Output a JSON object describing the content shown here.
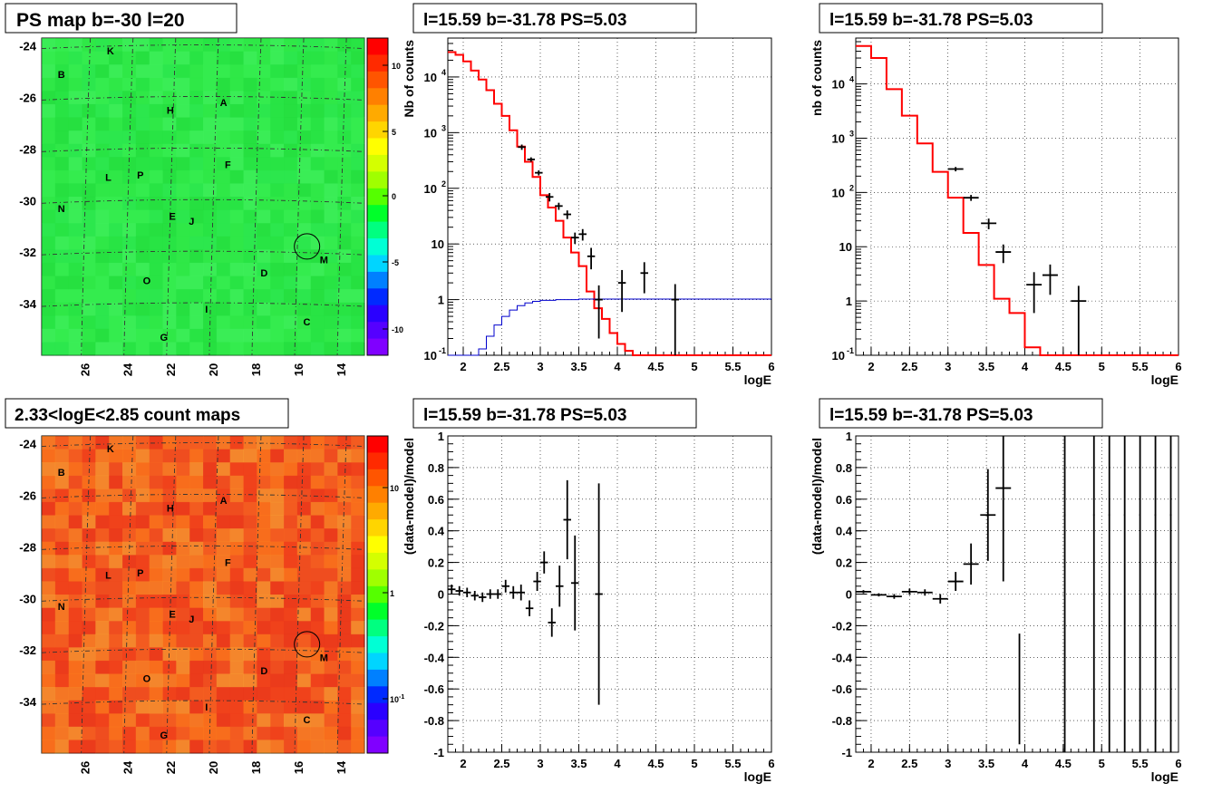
{
  "panels": {
    "map1_title": "PS map b=-30 l=20",
    "map2_title": "2.33<logE<2.85 count maps",
    "spec1_title": "l=15.59 b=-31.78 PS=5.03",
    "spec2_title": "l=15.59 b=-31.78 PS=5.03",
    "res1_title": "l=15.59 b=-31.78 PS=5.03",
    "res2_title": "l=15.59 b=-31.78 PS=5.03"
  },
  "maps": {
    "y_ticks": [
      "-24",
      "-26",
      "-28",
      "-30",
      "-32",
      "-34"
    ],
    "x_ticks": [
      "26",
      "24",
      "22",
      "20",
      "18",
      "16",
      "14"
    ],
    "source_labels": [
      {
        "label": "K",
        "l": 24.8,
        "b": -24.2
      },
      {
        "label": "B",
        "l": 27.1,
        "b": -25.1
      },
      {
        "label": "H",
        "l": 22.0,
        "b": -26.5
      },
      {
        "label": "A",
        "l": 19.5,
        "b": -26.2
      },
      {
        "label": "F",
        "l": 19.3,
        "b": -28.6
      },
      {
        "label": "L",
        "l": 24.9,
        "b": -29.1
      },
      {
        "label": "P",
        "l": 23.4,
        "b": -29.0
      },
      {
        "label": "N",
        "l": 27.1,
        "b": -30.3
      },
      {
        "label": "E",
        "l": 21.9,
        "b": -30.6
      },
      {
        "label": "J",
        "l": 21.0,
        "b": -30.8
      },
      {
        "label": "M",
        "l": 14.8,
        "b": -32.3
      },
      {
        "label": "D",
        "l": 17.6,
        "b": -32.8
      },
      {
        "label": "O",
        "l": 23.1,
        "b": -33.1
      },
      {
        "label": "I",
        "l": 20.3,
        "b": -34.2
      },
      {
        "label": "C",
        "l": 15.6,
        "b": -34.7
      },
      {
        "label": "G",
        "l": 22.3,
        "b": -35.3
      }
    ],
    "circle": {
      "l": 15.59,
      "b": -31.78
    },
    "colorbar1_ticks": [
      "10",
      "5",
      "0",
      "-5",
      "-10"
    ],
    "colorbar2_ticks": [
      "10",
      "1",
      "10-1"
    ]
  },
  "colors": {
    "model": "#ff0000",
    "background": "#0000cc",
    "data": "#000000"
  },
  "chart_data": [
    {
      "type": "line",
      "title": "l=15.59 b=-31.78 PS=5.03",
      "xlabel": "logE",
      "ylabel": "Nb of counts",
      "xlim": [
        1.8,
        6
      ],
      "ylim": [
        0.1,
        50000
      ],
      "yscale": "log",
      "x_ticks": [
        "2",
        "2.5",
        "3",
        "3.5",
        "4",
        "4.5",
        "5",
        "5.5",
        "6"
      ],
      "y_ticks": [
        "10^-1",
        "1",
        "10",
        "10^2",
        "10^3",
        "10^4"
      ],
      "series": [
        {
          "kind": "step",
          "color": "#ff0000",
          "edges": [
            1.8,
            1.9,
            2.0,
            2.1,
            2.2,
            2.3,
            2.4,
            2.5,
            2.6,
            2.7,
            2.8,
            2.9,
            3.0,
            3.1,
            3.2,
            3.3,
            3.4,
            3.5,
            3.6,
            3.7,
            3.8,
            3.9,
            4.0,
            4.1,
            4.2,
            6.0
          ],
          "values": [
            28000,
            25000,
            19000,
            13000,
            9000,
            5800,
            3300,
            2000,
            1100,
            560,
            300,
            160,
            75,
            45,
            26,
            13,
            7,
            4,
            1.4,
            0.7,
            0.45,
            0.25,
            0.16,
            0.12,
            0.08
          ]
        },
        {
          "kind": "step",
          "color": "#0000cc",
          "edges": [
            1.8,
            2.1,
            2.2,
            2.3,
            2.4,
            2.5,
            2.6,
            2.7,
            2.8,
            2.9,
            3.0,
            3.2,
            3.5,
            6.0
          ],
          "values": [
            0.05,
            0.08,
            0.13,
            0.22,
            0.35,
            0.5,
            0.65,
            0.78,
            0.87,
            0.93,
            0.97,
            1.0,
            1.02
          ]
        },
        {
          "kind": "points",
          "color": "#000000",
          "points": [
            [
              2.76,
              550,
              0.05,
              60
            ],
            [
              2.88,
              330,
              0.05,
              30
            ],
            [
              2.98,
              190,
              0.05,
              20
            ],
            [
              3.12,
              70,
              0.05,
              12
            ],
            [
              3.24,
              48,
              0.05,
              7
            ],
            [
              3.35,
              34,
              0.05,
              6
            ],
            [
              3.45,
              13,
              0.05,
              3
            ],
            [
              3.55,
              15,
              0.05,
              3.5
            ],
            [
              3.66,
              6,
              0.05,
              2.5
            ],
            [
              3.76,
              1,
              0.05,
              0.8
            ],
            [
              4.06,
              2,
              0.05,
              1.4
            ],
            [
              4.35,
              3,
              0.05,
              1.7
            ],
            [
              4.75,
              1,
              0.05,
              0.9
            ]
          ]
        }
      ]
    },
    {
      "type": "line",
      "title": "l=15.59 b=-31.78 PS=5.03",
      "xlabel": "logE",
      "ylabel": "nb of counts",
      "xlim": [
        1.8,
        6
      ],
      "ylim": [
        0.1,
        70000
      ],
      "yscale": "log",
      "x_ticks": [
        "2",
        "2.5",
        "3",
        "3.5",
        "4",
        "4.5",
        "5",
        "5.5",
        "6"
      ],
      "y_ticks": [
        "10^-1",
        "1",
        "10",
        "10^2",
        "10^3",
        "10^4"
      ],
      "series": [
        {
          "kind": "step",
          "color": "#ff0000",
          "edges": [
            1.8,
            2.0,
            2.2,
            2.4,
            2.6,
            2.8,
            3.0,
            3.2,
            3.4,
            3.6,
            3.8,
            4.0,
            4.2,
            4.4,
            6.0
          ],
          "values": [
            50000,
            30000,
            8000,
            2600,
            800,
            240,
            80,
            18,
            4.6,
            1.1,
            0.6,
            0.14,
            0.09,
            0.08
          ]
        },
        {
          "kind": "points",
          "color": "#000000",
          "points": [
            [
              3.1,
              270,
              0.1,
              25
            ],
            [
              3.3,
              80,
              0.1,
              10
            ],
            [
              3.53,
              27,
              0.1,
              6
            ],
            [
              3.72,
              8,
              0.1,
              3
            ],
            [
              4.12,
              2,
              0.1,
              1.4
            ],
            [
              4.33,
              3,
              0.1,
              1.7
            ],
            [
              4.7,
              1,
              0.1,
              0.9
            ]
          ]
        }
      ]
    },
    {
      "type": "scatter",
      "title": "l=15.59 b=-31.78 PS=5.03",
      "xlabel": "logE",
      "ylabel": "(data-model)/model",
      "xlim": [
        1.8,
        6
      ],
      "ylim": [
        -1,
        1
      ],
      "x_ticks": [
        "2",
        "2.5",
        "3",
        "3.5",
        "4",
        "4.5",
        "5",
        "5.5",
        "6"
      ],
      "y_ticks": [
        "1",
        "0.8",
        "0.6",
        "0.4",
        "0.2",
        "0",
        "-0.2",
        "-0.4",
        "-0.6",
        "-0.8",
        "-1"
      ],
      "points": [
        [
          1.85,
          0.03,
          0.05,
          0.03
        ],
        [
          1.95,
          0.02,
          0.05,
          0.03
        ],
        [
          2.05,
          0.01,
          0.05,
          0.03
        ],
        [
          2.15,
          -0.01,
          0.05,
          0.03
        ],
        [
          2.25,
          -0.02,
          0.05,
          0.03
        ],
        [
          2.35,
          0,
          0.05,
          0.03
        ],
        [
          2.45,
          0,
          0.05,
          0.03
        ],
        [
          2.55,
          0.05,
          0.05,
          0.04
        ],
        [
          2.65,
          0.01,
          0.05,
          0.04
        ],
        [
          2.75,
          0.01,
          0.05,
          0.05
        ],
        [
          2.86,
          -0.09,
          0.05,
          0.05
        ],
        [
          2.96,
          0.08,
          0.05,
          0.06
        ],
        [
          3.05,
          0.2,
          0.05,
          0.07
        ],
        [
          3.15,
          -0.18,
          0.05,
          0.09
        ],
        [
          3.25,
          0.05,
          0.05,
          0.13
        ],
        [
          3.35,
          0.47,
          0.05,
          0.25
        ],
        [
          3.45,
          0.07,
          0.05,
          0.3
        ],
        [
          3.76,
          0,
          0.05,
          0.7
        ]
      ]
    },
    {
      "type": "scatter",
      "title": "l=15.59 b=-31.78 PS=5.03",
      "xlabel": "logE",
      "ylabel": "(data-model)/model",
      "xlim": [
        1.8,
        6
      ],
      "ylim": [
        -1,
        1
      ],
      "x_ticks": [
        "2",
        "2.5",
        "3",
        "3.5",
        "4",
        "4.5",
        "5",
        "5.5",
        "6"
      ],
      "y_ticks": [
        "1",
        "0.8",
        "0.6",
        "0.4",
        "0.2",
        "0",
        "-0.2",
        "-0.4",
        "-0.6",
        "-0.8",
        "-1"
      ],
      "points": [
        [
          1.9,
          0.015,
          0.1,
          0.01
        ],
        [
          2.1,
          -0.005,
          0.1,
          0.01
        ],
        [
          2.3,
          -0.015,
          0.1,
          0.015
        ],
        [
          2.5,
          0.015,
          0.1,
          0.02
        ],
        [
          2.7,
          0.01,
          0.1,
          0.02
        ],
        [
          2.9,
          -0.03,
          0.1,
          0.03
        ],
        [
          3.1,
          0.08,
          0.1,
          0.06
        ],
        [
          3.3,
          0.19,
          0.1,
          0.13
        ],
        [
          3.52,
          0.5,
          0.1,
          0.29
        ],
        [
          3.72,
          0.67,
          0.1,
          0.59
        ],
        [
          3.93,
          -0.6,
          0.01,
          0.35
        ],
        [
          4.52,
          0.5,
          0.01,
          1.5
        ],
        [
          4.9,
          0.5,
          0.01,
          1.5
        ],
        [
          5.1,
          0.5,
          0.01,
          1.5
        ],
        [
          5.3,
          0.5,
          0.01,
          1.5
        ],
        [
          5.5,
          0.5,
          0.01,
          1.5
        ],
        [
          5.7,
          0.5,
          0.01,
          1.5
        ],
        [
          5.9,
          0.5,
          0.01,
          1.5
        ]
      ]
    }
  ]
}
